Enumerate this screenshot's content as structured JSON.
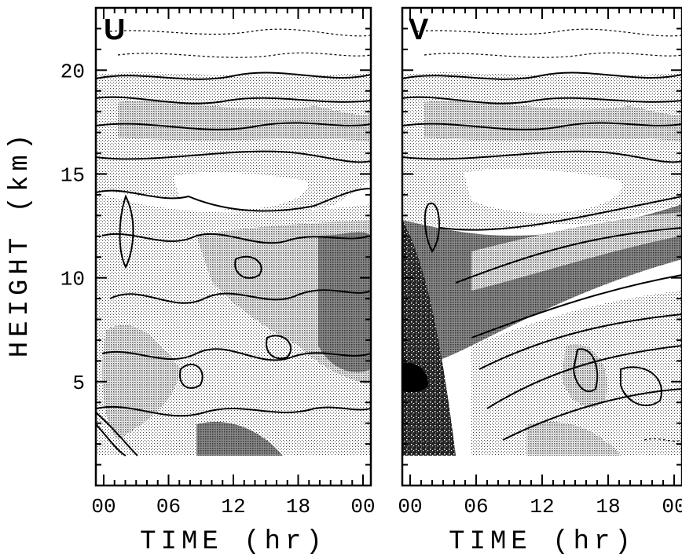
{
  "y_axis_label": "HEIGHT (km)",
  "chart_data": [
    {
      "type": "heatmap",
      "panel_label": "U",
      "title": "",
      "xlabel": "TIME (hr)",
      "ylabel": "HEIGHT (km)",
      "x_ticks": [
        "00",
        "06",
        "12",
        "18",
        "00"
      ],
      "x_tick_values": [
        0,
        6,
        12,
        18,
        24
      ],
      "xlim": [
        0,
        24
      ],
      "y_ticks": [
        5,
        10,
        15,
        20
      ],
      "ylim": [
        0,
        23
      ],
      "grid": false
    },
    {
      "type": "heatmap",
      "panel_label": "V",
      "title": "",
      "xlabel": "TIME (hr)",
      "ylabel": "",
      "x_ticks": [
        "00",
        "06",
        "12",
        "18",
        "00"
      ],
      "x_tick_values": [
        0,
        6,
        12,
        18,
        24
      ],
      "xlim": [
        0,
        24
      ],
      "y_ticks": [
        5,
        10,
        15,
        20
      ],
      "ylim": [
        0,
        23
      ],
      "grid": false
    }
  ],
  "colors": {
    "shade_light": "#dcdcdc",
    "shade_mid": "#b4b4b4",
    "shade_dark": "#7a7a7a",
    "shade_black": "#000000"
  }
}
